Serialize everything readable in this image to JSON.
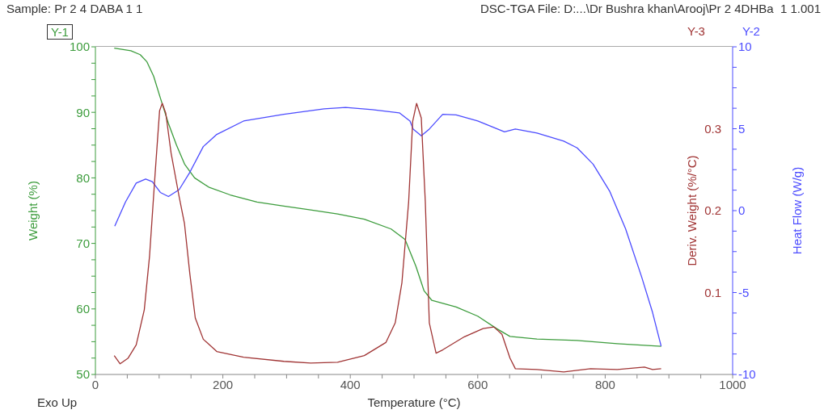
{
  "chart_data": {
    "type": "line",
    "title": "Sample: Pr 2  4 DABA  1 1",
    "subtitle": "DSC-TGA File: D:...\\Dr Bushra khan\\Arooj\\Pr 2 4DHBa  1 1.001",
    "xlabel": "Temperature (°C)",
    "ylabel": "Weight (%)",
    "y2label": "Heat Flow (W/g)",
    "y3label": "Deriv. Weight (%/°C)",
    "annotations": [
      "Y-1",
      "Y-3",
      "Y-2",
      "Exo Up"
    ],
    "xlim": [
      0,
      1000
    ],
    "xticks": [
      0,
      {
        "value": 50,
        "label": null
      },
      {
        "value": 100,
        "label": null
      },
      {
        "value": 150,
        "label": null
      },
      200,
      {
        "value": 250,
        "label": null
      },
      {
        "value": 300,
        "label": null
      },
      {
        "value": 350,
        "label": null
      },
      400,
      {
        "value": 450,
        "label": null
      },
      {
        "value": 500,
        "label": null
      },
      {
        "value": 550,
        "label": null
      },
      600,
      {
        "value": 650,
        "label": null
      },
      {
        "value": 700,
        "label": null
      },
      {
        "value": 750,
        "label": null
      },
      800,
      {
        "value": 850,
        "label": null
      },
      {
        "value": 900,
        "label": null
      },
      {
        "value": 950,
        "label": null
      },
      1000
    ],
    "ylim": [
      50,
      100
    ],
    "yticks": [
      50,
      {
        "value": 52.5,
        "label": null
      },
      {
        "value": 55,
        "label": null
      },
      {
        "value": 57.5,
        "label": null
      },
      60,
      {
        "value": 62.5,
        "label": null
      },
      {
        "value": 65,
        "label": null
      },
      {
        "value": 67.5,
        "label": null
      },
      70,
      {
        "value": 72.5,
        "label": null
      },
      {
        "value": 75,
        "label": null
      },
      {
        "value": 77.5,
        "label": null
      },
      80,
      {
        "value": 82.5,
        "label": null
      },
      {
        "value": 85,
        "label": null
      },
      {
        "value": 87.5,
        "label": null
      },
      90,
      {
        "value": 92.5,
        "label": null
      },
      {
        "value": 95,
        "label": null
      },
      {
        "value": 97.5,
        "label": null
      },
      100
    ],
    "y2lim": [
      -10,
      10
    ],
    "y2ticks": [
      -10,
      {
        "value": -8.75,
        "label": null
      },
      {
        "value": -7.5,
        "label": null
      },
      {
        "value": -6.25,
        "label": null
      },
      -5,
      {
        "value": -3.75,
        "label": null
      },
      {
        "value": -2.5,
        "label": null
      },
      {
        "value": -1.25,
        "label": null
      },
      0,
      {
        "value": 1.25,
        "label": null
      },
      {
        "value": 2.5,
        "label": null
      },
      {
        "value": 3.75,
        "label": null
      },
      5,
      {
        "value": 6.25,
        "label": null
      },
      {
        "value": 7.5,
        "label": null
      },
      {
        "value": 8.75,
        "label": null
      },
      10
    ],
    "y3lim": [
      0,
      0.4
    ],
    "y3ticks": [
      0.1,
      0.2,
      0.3
    ],
    "marker": "none",
    "line_style": "solid",
    "series": [
      {
        "color": "#3c9c3c",
        "axis": "y",
        "x": [
          29.5,
          55.6,
          70.3,
          80.9,
          91.4,
          101.9,
          114.6,
          127.2,
          139.9,
          155.6,
          177.7,
          211.5,
          253.6,
          295.7,
          337.8,
          380,
          422,
          464,
          486,
          503,
          515.6,
          528,
          566,
          600,
          629.5,
          650.6,
          693,
          756,
          819,
          888
        ],
        "values": [
          99.8,
          99.4,
          98.8,
          97.7,
          95.5,
          92.2,
          88.3,
          85.0,
          82.1,
          80.0,
          78.6,
          77.4,
          76.3,
          75.7,
          75.1,
          74.5,
          73.7,
          72.2,
          70.6,
          66.5,
          62.8,
          61.3,
          60.3,
          58.9,
          57.0,
          55.8,
          55.4,
          55.2,
          54.7,
          54.3
        ]
      },
      {
        "color": "#4b4bff",
        "axis": "y2",
        "x": [
          30.3,
          47.2,
          64,
          78.8,
          89.3,
          101.9,
          114.6,
          131.4,
          148.3,
          169.3,
          190.4,
          232.5,
          295.7,
          358.9,
          392.6,
          434.7,
          476.9,
          493.7,
          498.7,
          511.4,
          524,
          545,
          566,
          600,
          642,
          659,
          693,
          735,
          756,
          781,
          807,
          832,
          857.4,
          874.3,
          887.8
        ],
        "values": [
          -0.95,
          0.53,
          1.68,
          1.93,
          1.77,
          1.11,
          0.86,
          1.28,
          2.35,
          3.91,
          4.65,
          5.47,
          5.88,
          6.21,
          6.3,
          6.16,
          5.97,
          5.47,
          4.98,
          4.57,
          4.98,
          5.88,
          5.84,
          5.47,
          4.81,
          4.98,
          4.73,
          4.24,
          3.83,
          2.84,
          1.19,
          -1.11,
          -4.07,
          -6.21,
          -8.27
        ]
      },
      {
        "color": "#a03434",
        "axis": "y3",
        "x": [
          29.5,
          38.8,
          51.4,
          64,
          76.7,
          85,
          93.5,
          100.7,
          104.9,
          110.4,
          118.8,
          131.4,
          139.8,
          148.3,
          156.7,
          169.3,
          190.4,
          232.5,
          295.7,
          337.8,
          380,
          422,
          455.8,
          470.5,
          481,
          491.6,
          497.9,
          504,
          511.4,
          517.7,
          524,
          534.6,
          545,
          579,
          608.4,
          625.3,
          638,
          650.6,
          659,
          693,
          735,
          777,
          819,
          861.6,
          874.3,
          887.8
        ],
        "values": [
          0.023,
          0.013,
          0.02,
          0.036,
          0.079,
          0.145,
          0.243,
          0.322,
          0.331,
          0.319,
          0.27,
          0.217,
          0.184,
          0.122,
          0.069,
          0.043,
          0.028,
          0.021,
          0.016,
          0.014,
          0.015,
          0.023,
          0.039,
          0.063,
          0.112,
          0.211,
          0.309,
          0.331,
          0.313,
          0.211,
          0.063,
          0.026,
          0.03,
          0.046,
          0.056,
          0.058,
          0.049,
          0.02,
          0.007,
          0.006,
          0.003,
          0.007,
          0.006,
          0.009,
          0.006,
          0.007
        ]
      }
    ]
  }
}
